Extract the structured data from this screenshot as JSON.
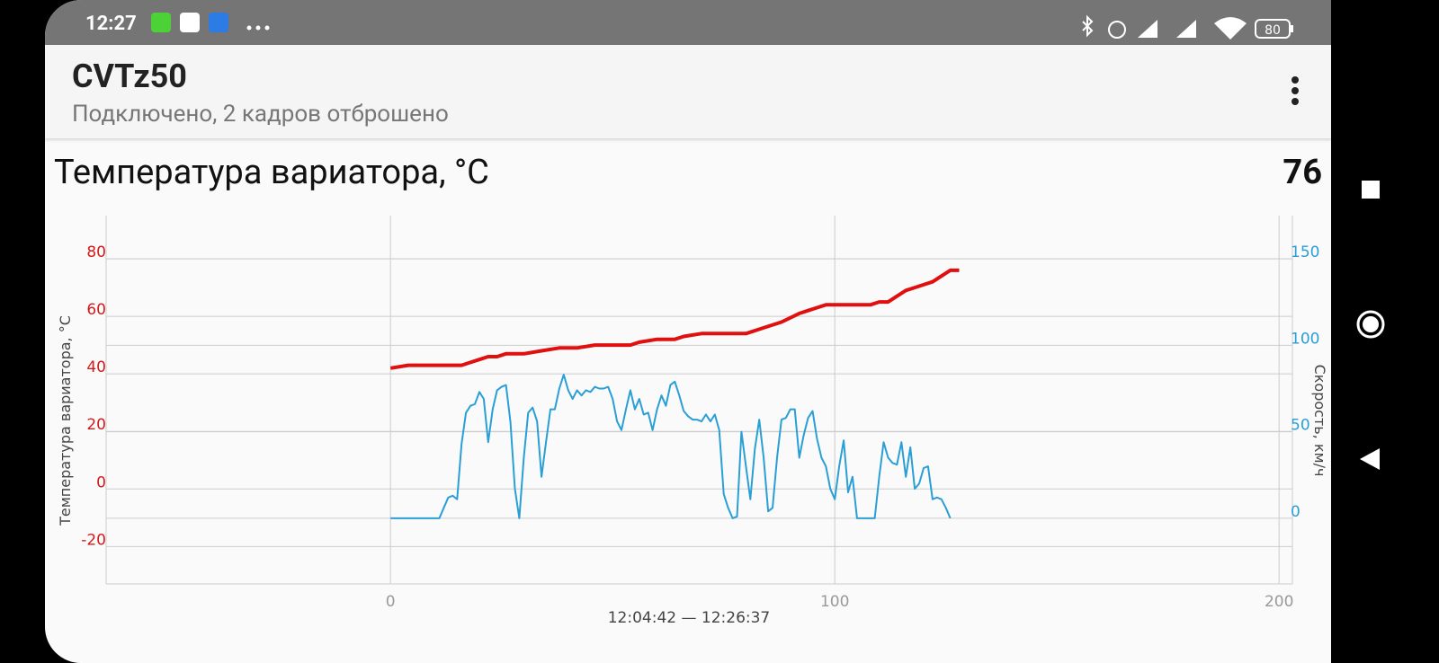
{
  "status_bar": {
    "time": "12:27",
    "battery": "80"
  },
  "app_bar": {
    "title": "CVTz50",
    "subtitle": "Подключено, 2 кадров отброшено"
  },
  "chart_data": {
    "type": "line",
    "title": "Температура вариатора, °C",
    "current_value": 76,
    "xlabel": "12:04:42 — 12:26:37",
    "ylabel": "Температура вариатора, °C",
    "y2label": "Скорость, км/ч",
    "xlim": [
      -64,
      203
    ],
    "xticks": [
      0,
      100,
      200
    ],
    "ylim": [
      -33,
      95
    ],
    "yticks": [
      -20,
      0,
      20,
      40,
      60,
      80
    ],
    "y2lim": [
      -38,
      175
    ],
    "y2ticks": [
      0,
      50,
      100,
      150
    ],
    "ytick_color": "#d01c1c",
    "y2tick_color": "#2a9fd6",
    "grid": true,
    "series": [
      {
        "color": "#e01010",
        "axis": "y",
        "x": [
          0,
          4,
          8,
          12,
          16,
          18,
          20,
          22,
          24,
          26,
          30,
          34,
          38,
          42,
          46,
          50,
          54,
          56,
          60,
          64,
          66,
          70,
          74,
          80,
          84,
          88,
          92,
          94,
          96,
          98,
          100,
          104,
          108,
          110,
          112,
          114,
          116,
          118,
          120,
          122,
          124,
          126,
          128
        ],
        "values": [
          42,
          43,
          43,
          43,
          43,
          44,
          45,
          46,
          46,
          47,
          47,
          48,
          49,
          49,
          50,
          50,
          50,
          51,
          52,
          52,
          53,
          54,
          54,
          54,
          56,
          58,
          61,
          62,
          63,
          64,
          64,
          64,
          64,
          65,
          65,
          67,
          69,
          70,
          71,
          72,
          74,
          76,
          76
        ]
      },
      {
        "color": "#2a9fd6",
        "axis": "y2",
        "x": [
          0,
          11,
          12,
          13,
          14,
          15,
          16,
          17,
          18,
          19,
          20,
          21,
          22,
          23,
          24,
          25,
          26,
          27,
          28,
          29,
          30,
          31,
          32,
          33,
          34,
          35,
          36,
          37,
          38,
          39,
          40,
          41,
          42,
          43,
          44,
          45,
          46,
          47,
          48,
          49,
          50,
          51,
          52,
          53,
          54,
          55,
          56,
          57,
          58,
          59,
          60,
          61,
          62,
          63,
          64,
          65,
          66,
          67,
          68,
          69,
          70,
          71,
          72,
          73,
          74,
          75,
          76,
          77,
          78,
          79,
          80,
          81,
          82,
          83,
          84,
          85,
          86,
          87,
          88,
          89,
          90,
          91,
          92,
          93,
          94,
          95,
          96,
          97,
          98,
          99,
          100,
          101,
          102,
          103,
          104,
          105,
          106,
          107,
          108,
          109,
          110,
          111,
          112,
          113,
          114,
          115,
          116,
          117,
          118,
          119,
          120,
          121,
          122,
          123,
          124,
          125,
          126
        ],
        "values": [
          0,
          0,
          6,
          12,
          13,
          11,
          43,
          61,
          65,
          66,
          73,
          69,
          44,
          63,
          74,
          76,
          77,
          56,
          17,
          0,
          35,
          61,
          64,
          56,
          24,
          44,
          63,
          63,
          75,
          83,
          74,
          69,
          74,
          71,
          74,
          73,
          76,
          75,
          75,
          76,
          69,
          56,
          51,
          63,
          74,
          63,
          69,
          60,
          61,
          51,
          63,
          71,
          65,
          77,
          79,
          71,
          62,
          59,
          57,
          57,
          56,
          60,
          56,
          60,
          51,
          14,
          6,
          0,
          1,
          50,
          30,
          11,
          40,
          57,
          35,
          4,
          6,
          35,
          57,
          58,
          63,
          63,
          35,
          48,
          58,
          62,
          46,
          35,
          30,
          17,
          11,
          30,
          45,
          15,
          24,
          0,
          0,
          0,
          0,
          0,
          24,
          44,
          35,
          32,
          31,
          44,
          24,
          41,
          17,
          20,
          29,
          30,
          11,
          12,
          11,
          6,
          0
        ]
      }
    ]
  }
}
